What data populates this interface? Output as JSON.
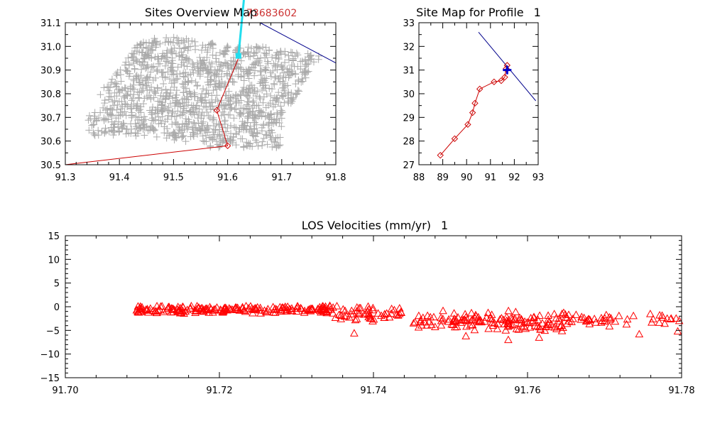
{
  "colors": {
    "site_points": "#aaaaaa",
    "profile_line": "#cc0000",
    "azimuth_line": "#00008b",
    "aqua_line": "#22ddee",
    "annotation": "#cc3333",
    "los_markers": "#ff0000",
    "site_marker": "#0000cc"
  },
  "chart_data": [
    {
      "id": "overview",
      "type": "scatter",
      "title": "Sites Overview Map",
      "annotation": "73683602",
      "xlim": [
        91.3,
        91.8
      ],
      "ylim": [
        30.5,
        31.1
      ],
      "xticks": [
        "91.3",
        "91.4",
        "91.5",
        "91.6",
        "91.7",
        "91.8"
      ],
      "xtick_values": [
        91.3,
        91.4,
        91.5,
        91.6,
        91.7,
        91.8
      ],
      "yticks": [
        "30.5",
        "30.6",
        "30.7",
        "30.8",
        "30.9",
        "31.0",
        "31.1"
      ],
      "ytick_values": [
        30.5,
        30.6,
        30.7,
        30.8,
        30.9,
        31.0,
        31.1
      ],
      "sites_cloud": {
        "marker": "plus",
        "outline": [
          [
            91.4,
            30.62
          ],
          [
            91.45,
            30.62
          ],
          [
            91.58,
            30.57
          ],
          [
            91.7,
            30.57
          ],
          [
            91.7,
            30.7
          ],
          [
            91.73,
            30.8
          ],
          [
            91.76,
            30.92
          ],
          [
            91.78,
            30.96
          ],
          [
            91.66,
            31.0
          ],
          [
            91.62,
            31.0
          ],
          [
            91.5,
            31.04
          ],
          [
            91.44,
            31.03
          ],
          [
            91.4,
            30.9
          ],
          [
            91.36,
            30.8
          ],
          [
            91.34,
            30.68
          ],
          [
            91.34,
            30.62
          ]
        ]
      },
      "profile_line": {
        "x": [
          91.3,
          91.6,
          91.58,
          91.62,
          91.62
        ],
        "y": [
          30.5,
          30.58,
          30.73,
          30.95,
          30.97
        ],
        "marker_indices": [
          1,
          2
        ]
      },
      "azimuth_line": {
        "x": [
          91.66,
          91.8
        ],
        "y": [
          31.1,
          30.93
        ]
      },
      "aqua_line": {
        "x": [
          91.62,
          91.63
        ],
        "y": [
          30.96,
          31.15
        ]
      },
      "aqua_point": {
        "x": 91.62,
        "y": 30.96
      }
    },
    {
      "id": "site_map",
      "type": "line",
      "title": "Site Map for Profile",
      "title_number": "1",
      "xlim": [
        88,
        93
      ],
      "ylim": [
        27,
        33
      ],
      "xticks": [
        "88",
        "89",
        "90",
        "91",
        "92",
        "93"
      ],
      "xtick_values": [
        88,
        89,
        90,
        91,
        92,
        93
      ],
      "yticks": [
        "27",
        "28",
        "29",
        "30",
        "31",
        "32",
        "33"
      ],
      "ytick_values": [
        27,
        28,
        29,
        30,
        31,
        32,
        33
      ],
      "profile": {
        "x": [
          88.9,
          89.5,
          90.05,
          90.25,
          90.35,
          90.55,
          91.15,
          91.45,
          91.6,
          91.65,
          91.7
        ],
        "y": [
          27.4,
          28.1,
          28.7,
          29.2,
          29.6,
          30.2,
          30.5,
          30.55,
          30.7,
          31.05,
          31.2
        ]
      },
      "azimuth_line": {
        "x": [
          90.5,
          92.9
        ],
        "y": [
          32.6,
          29.7
        ]
      },
      "site_marker": {
        "x": 91.7,
        "y": 31.0
      }
    },
    {
      "id": "los",
      "type": "scatter",
      "title": "LOS Velocities (mm/yr)",
      "title_number": "1",
      "xlim": [
        91.7,
        91.78
      ],
      "ylim": [
        -15,
        15
      ],
      "xticks": [
        "91.70",
        "91.72",
        "91.74",
        "91.76",
        "91.78"
      ],
      "xtick_values": [
        91.7,
        91.72,
        91.74,
        91.76,
        91.78
      ],
      "yticks": [
        "15",
        "10",
        "5",
        "0",
        "−5",
        "−10",
        "−15"
      ],
      "ytick_values": [
        15,
        10,
        5,
        0,
        -5,
        -10,
        -15
      ],
      "marker": "triangle",
      "series": [
        {
          "x_range": [
            91.709,
            91.735
          ],
          "mean": -0.6,
          "spread": 0.9,
          "count": 200
        },
        {
          "x_range": [
            91.735,
            91.744
          ],
          "mean": -1.5,
          "spread": 2.0,
          "count": 55
        },
        {
          "x_range": [
            91.745,
            91.757
          ],
          "mean": -3.0,
          "spread": 2.2,
          "count": 75
        },
        {
          "x_range": [
            91.757,
            91.766
          ],
          "mean": -3.0,
          "spread": 2.4,
          "count": 75
        },
        {
          "x_range": [
            91.766,
            91.78
          ],
          "mean": -2.5,
          "spread": 1.8,
          "count": 40
        }
      ],
      "outliers": [
        {
          "x": 91.7375,
          "y": -5.6
        },
        {
          "x": 91.752,
          "y": -6.2
        },
        {
          "x": 91.7575,
          "y": -7.0
        },
        {
          "x": 91.7615,
          "y": -6.5
        },
        {
          "x": 91.7745,
          "y": -5.8
        },
        {
          "x": 91.7795,
          "y": -5.2
        }
      ]
    }
  ]
}
